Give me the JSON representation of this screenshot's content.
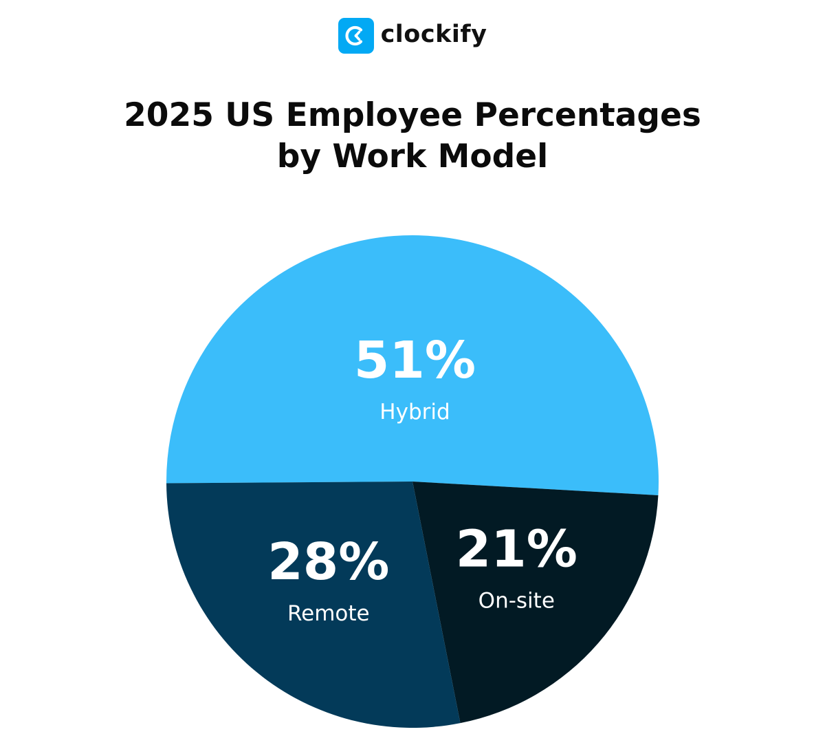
{
  "brand": {
    "name": "clockify",
    "icon": "clockify-logo-icon",
    "color": "#03A9F4"
  },
  "chart_data": {
    "type": "pie",
    "title": "2025 US Employee Percentages by Work Model",
    "title_lines": [
      "2025 US Employee Percentages",
      "by Work Model"
    ],
    "slices": [
      {
        "label": "Hybrid",
        "value": 51,
        "value_label": "51%",
        "color": "#3BBDFA"
      },
      {
        "label": "On-site",
        "value": 21,
        "value_label": "21%",
        "color": "#021A24"
      },
      {
        "label": "Remote",
        "value": 28,
        "value_label": "28%",
        "color": "#033A59"
      }
    ]
  }
}
